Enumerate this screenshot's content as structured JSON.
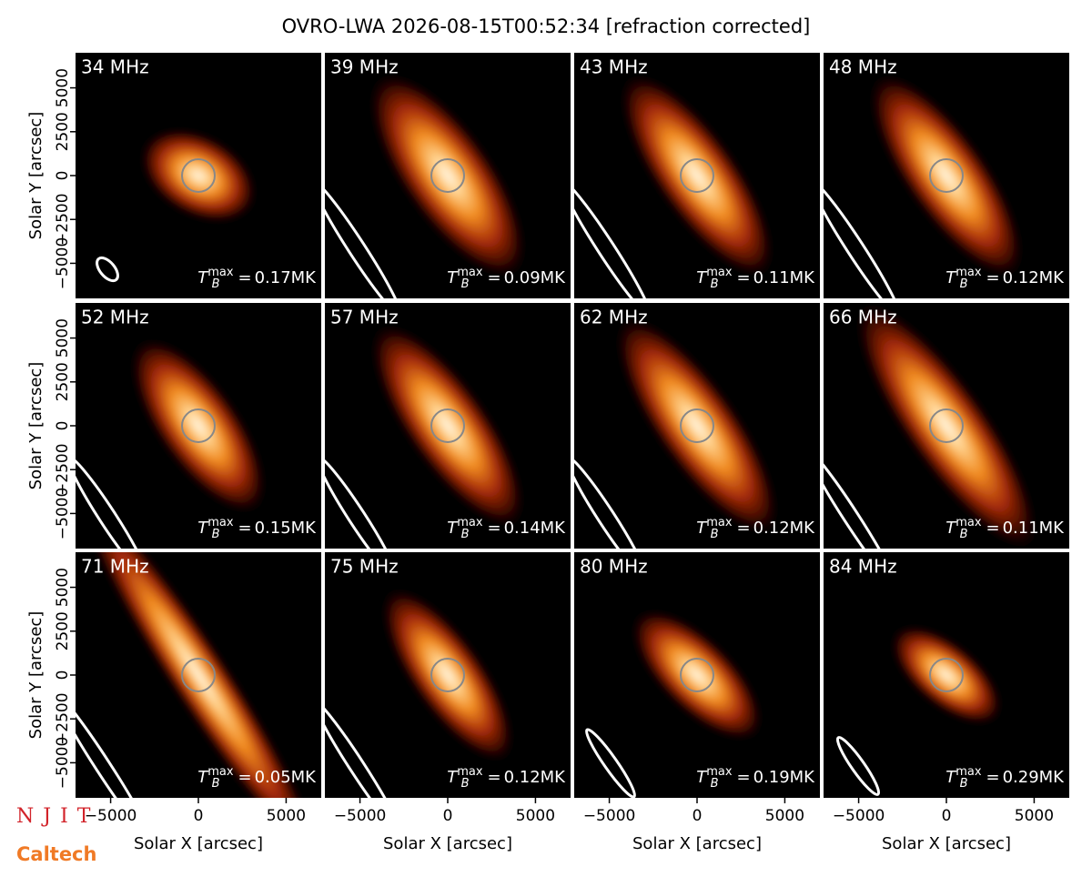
{
  "title": "OVRO-LWA 2026-08-15T00:52:34 [refraction corrected]",
  "axes": {
    "xlabel": "Solar X [arcsec]",
    "ylabel": "Solar Y [arcsec]",
    "xlim": [
      -7000,
      7000
    ],
    "ylim": [
      -7000,
      7000
    ],
    "xticks": [
      {
        "value": -5000,
        "label": "−5000"
      },
      0,
      5000
    ],
    "yticks": [
      {
        "value": -5000,
        "label": "−5000"
      },
      {
        "value": -2500,
        "label": "−2500"
      },
      0,
      2500,
      5000
    ],
    "annotation_symbol": {
      "base": "T",
      "sub": "B",
      "sup": "max",
      "equals": "="
    }
  },
  "logos": {
    "njit": "NJIT",
    "caltech": "Caltech"
  },
  "chart_data": [
    {
      "type": "image",
      "title": "34 MHz",
      "tb_max": 0.17,
      "tb_max_label": "0.17MK"
    },
    {
      "type": "image",
      "title": "39 MHz",
      "tb_max": 0.09,
      "tb_max_label": "0.09MK"
    },
    {
      "type": "image",
      "title": "43 MHz",
      "tb_max": 0.11,
      "tb_max_label": "0.11MK"
    },
    {
      "type": "image",
      "title": "48 MHz",
      "tb_max": 0.12,
      "tb_max_label": "0.12MK"
    },
    {
      "type": "image",
      "title": "52 MHz",
      "tb_max": 0.15,
      "tb_max_label": "0.15MK"
    },
    {
      "type": "image",
      "title": "57 MHz",
      "tb_max": 0.14,
      "tb_max_label": "0.14MK"
    },
    {
      "type": "image",
      "title": "62 MHz",
      "tb_max": 0.12,
      "tb_max_label": "0.12MK"
    },
    {
      "type": "image",
      "title": "66 MHz",
      "tb_max": 0.11,
      "tb_max_label": "0.11MK"
    },
    {
      "type": "image",
      "title": "71 MHz",
      "tb_max": 0.05,
      "tb_max_label": "0.05MK"
    },
    {
      "type": "image",
      "title": "75 MHz",
      "tb_max": 0.12,
      "tb_max_label": "0.12MK"
    },
    {
      "type": "image",
      "title": "80 MHz",
      "tb_max": 0.19,
      "tb_max_label": "0.19MK"
    },
    {
      "type": "image",
      "title": "84 MHz",
      "tb_max": 0.29,
      "tb_max_label": "0.29MK"
    }
  ]
}
